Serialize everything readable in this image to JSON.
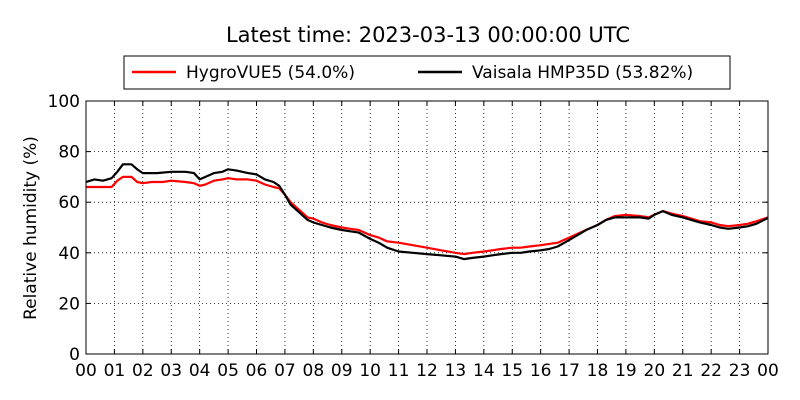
{
  "chart_data": {
    "type": "line",
    "title": "Latest time: 2023-03-13 00:00:00 UTC",
    "xlabel": "",
    "ylabel": "Relative humidity (%)",
    "xlim": [
      0,
      24
    ],
    "ylim": [
      0,
      100
    ],
    "x_ticks": [
      "00",
      "01",
      "02",
      "03",
      "04",
      "05",
      "06",
      "07",
      "08",
      "09",
      "10",
      "11",
      "12",
      "13",
      "14",
      "15",
      "16",
      "17",
      "18",
      "19",
      "20",
      "21",
      "22",
      "23",
      "00"
    ],
    "y_ticks": [
      0,
      20,
      40,
      60,
      80,
      100
    ],
    "grid": true,
    "legend_position": "top",
    "series": [
      {
        "name": "HygroVUE5 (54.0%)",
        "color": "#ff0000",
        "points": [
          [
            0,
            66
          ],
          [
            0.5,
            66
          ],
          [
            0.9,
            66
          ],
          [
            1.1,
            68.5
          ],
          [
            1.3,
            70
          ],
          [
            1.6,
            70
          ],
          [
            1.8,
            68
          ],
          [
            2.0,
            67.5
          ],
          [
            2.3,
            68
          ],
          [
            2.7,
            68
          ],
          [
            3.0,
            68.5
          ],
          [
            3.5,
            68
          ],
          [
            3.8,
            67.5
          ],
          [
            4.0,
            66.5
          ],
          [
            4.2,
            67
          ],
          [
            4.5,
            68.5
          ],
          [
            4.8,
            69
          ],
          [
            5.0,
            69.5
          ],
          [
            5.3,
            69
          ],
          [
            5.7,
            69
          ],
          [
            6.0,
            68.5
          ],
          [
            6.3,
            67
          ],
          [
            6.6,
            66
          ],
          [
            6.8,
            65.5
          ],
          [
            7.0,
            63
          ],
          [
            7.2,
            60
          ],
          [
            7.5,
            57
          ],
          [
            7.8,
            54
          ],
          [
            8.0,
            53.5
          ],
          [
            8.3,
            52
          ],
          [
            8.6,
            51
          ],
          [
            9.0,
            50
          ],
          [
            9.3,
            49.5
          ],
          [
            9.6,
            49
          ],
          [
            10.0,
            47
          ],
          [
            10.3,
            46
          ],
          [
            10.6,
            44.5
          ],
          [
            11.0,
            44
          ],
          [
            11.5,
            43
          ],
          [
            12.0,
            42
          ],
          [
            12.5,
            41
          ],
          [
            13.0,
            40
          ],
          [
            13.3,
            39.5
          ],
          [
            13.6,
            40
          ],
          [
            14.0,
            40.5
          ],
          [
            14.3,
            41
          ],
          [
            14.6,
            41.5
          ],
          [
            15.0,
            42
          ],
          [
            15.3,
            42
          ],
          [
            15.6,
            42.5
          ],
          [
            16.0,
            43
          ],
          [
            16.3,
            43.5
          ],
          [
            16.6,
            44
          ],
          [
            17.0,
            46
          ],
          [
            17.3,
            47.5
          ],
          [
            17.6,
            49
          ],
          [
            18.0,
            51
          ],
          [
            18.3,
            53
          ],
          [
            18.6,
            54.5
          ],
          [
            19.0,
            55
          ],
          [
            19.5,
            54.5
          ],
          [
            19.8,
            54
          ],
          [
            20.0,
            55
          ],
          [
            20.3,
            56.5
          ],
          [
            20.6,
            55.5
          ],
          [
            21.0,
            54.5
          ],
          [
            21.3,
            53.5
          ],
          [
            21.6,
            52.5
          ],
          [
            22.0,
            52
          ],
          [
            22.3,
            51
          ],
          [
            22.6,
            50.5
          ],
          [
            23.0,
            51
          ],
          [
            23.3,
            51.5
          ],
          [
            23.6,
            52.5
          ],
          [
            24.0,
            54
          ]
        ]
      },
      {
        "name": "Vaisala HMP35D (53.82%)",
        "color": "#000000",
        "points": [
          [
            0,
            68
          ],
          [
            0.3,
            69
          ],
          [
            0.6,
            68.5
          ],
          [
            0.9,
            69.5
          ],
          [
            1.1,
            72
          ],
          [
            1.3,
            75
          ],
          [
            1.6,
            75
          ],
          [
            1.8,
            73
          ],
          [
            2.0,
            71.5
          ],
          [
            2.5,
            71.5
          ],
          [
            3.0,
            72
          ],
          [
            3.5,
            72
          ],
          [
            3.8,
            71.5
          ],
          [
            4.0,
            69
          ],
          [
            4.2,
            70
          ],
          [
            4.5,
            71.5
          ],
          [
            4.8,
            72
          ],
          [
            5.0,
            73
          ],
          [
            5.3,
            72.5
          ],
          [
            5.7,
            71.5
          ],
          [
            6.0,
            71
          ],
          [
            6.3,
            69
          ],
          [
            6.6,
            68
          ],
          [
            6.8,
            66.5
          ],
          [
            7.0,
            63
          ],
          [
            7.2,
            59
          ],
          [
            7.5,
            56
          ],
          [
            7.8,
            53
          ],
          [
            8.0,
            52
          ],
          [
            8.3,
            51
          ],
          [
            8.6,
            50
          ],
          [
            9.0,
            49
          ],
          [
            9.3,
            48.5
          ],
          [
            9.6,
            48
          ],
          [
            10.0,
            45.5
          ],
          [
            10.3,
            44
          ],
          [
            10.6,
            42
          ],
          [
            11.0,
            40.5
          ],
          [
            11.5,
            40
          ],
          [
            12.0,
            39.5
          ],
          [
            12.5,
            39
          ],
          [
            13.0,
            38.5
          ],
          [
            13.3,
            37.5
          ],
          [
            13.6,
            38
          ],
          [
            14.0,
            38.5
          ],
          [
            14.3,
            39
          ],
          [
            14.6,
            39.5
          ],
          [
            15.0,
            40
          ],
          [
            15.3,
            40
          ],
          [
            15.6,
            40.5
          ],
          [
            16.0,
            41
          ],
          [
            16.3,
            41.5
          ],
          [
            16.6,
            42.5
          ],
          [
            17.0,
            45
          ],
          [
            17.3,
            47
          ],
          [
            17.6,
            49
          ],
          [
            18.0,
            51
          ],
          [
            18.3,
            53
          ],
          [
            18.6,
            54
          ],
          [
            19.0,
            54
          ],
          [
            19.5,
            54
          ],
          [
            19.8,
            53.5
          ],
          [
            20.0,
            55
          ],
          [
            20.3,
            56.5
          ],
          [
            20.6,
            55
          ],
          [
            21.0,
            54
          ],
          [
            21.3,
            53
          ],
          [
            21.6,
            52
          ],
          [
            22.0,
            51
          ],
          [
            22.3,
            50
          ],
          [
            22.6,
            49.5
          ],
          [
            23.0,
            50
          ],
          [
            23.3,
            50.5
          ],
          [
            23.6,
            51.5
          ],
          [
            24.0,
            53.8
          ]
        ]
      }
    ]
  }
}
